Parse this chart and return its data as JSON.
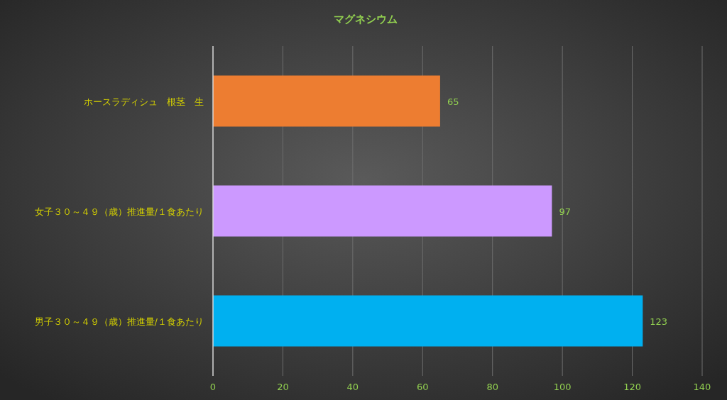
{
  "chart_data": {
    "type": "bar",
    "orientation": "horizontal",
    "title": "マグネシウム",
    "categories": [
      "ホースラディシュ　根茎　生",
      "女子３０～４９（歳）推進量/１食あたり",
      "男子３０～４９（歳）推進量/１食あたり"
    ],
    "values": [
      65,
      97,
      123
    ],
    "colors": [
      "#ed7d31",
      "#cc99ff",
      "#00b0f0"
    ],
    "xlim": [
      0,
      140
    ],
    "xticks": [
      0,
      20,
      40,
      60,
      80,
      100,
      120,
      140
    ],
    "grid": "x",
    "data_labels": true
  }
}
